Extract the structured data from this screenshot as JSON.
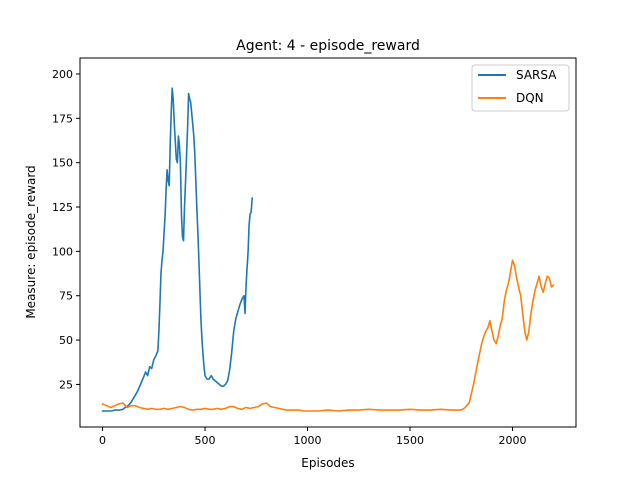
{
  "chart_data": {
    "type": "line",
    "title": "Agent: 4 - episode_reward",
    "xlabel": "Episodes",
    "ylabel": "Measure: episode_reward",
    "xlim": [
      -110,
      2310
    ],
    "ylim": [
      1,
      209
    ],
    "xticks": [
      0,
      500,
      1000,
      1500,
      2000
    ],
    "yticks": [
      25,
      50,
      75,
      100,
      125,
      150,
      175,
      200
    ],
    "grid": false,
    "legend_position": "top-right",
    "series": [
      {
        "name": "SARSA",
        "color": "#1f77b4",
        "points": [
          [
            0,
            10
          ],
          [
            20,
            10
          ],
          [
            40,
            10
          ],
          [
            60,
            10.5
          ],
          [
            80,
            10.5
          ],
          [
            100,
            11
          ],
          [
            110,
            12
          ],
          [
            125,
            13
          ],
          [
            140,
            15
          ],
          [
            155,
            18
          ],
          [
            170,
            21
          ],
          [
            185,
            25
          ],
          [
            200,
            29
          ],
          [
            210,
            32
          ],
          [
            220,
            30
          ],
          [
            230,
            35
          ],
          [
            240,
            34
          ],
          [
            250,
            39
          ],
          [
            260,
            41
          ],
          [
            270,
            44
          ],
          [
            275,
            55
          ],
          [
            280,
            70
          ],
          [
            285,
            88
          ],
          [
            290,
            95
          ],
          [
            295,
            100
          ],
          [
            300,
            110
          ],
          [
            305,
            120
          ],
          [
            310,
            135
          ],
          [
            315,
            146
          ],
          [
            320,
            140
          ],
          [
            325,
            137
          ],
          [
            330,
            160
          ],
          [
            335,
            178
          ],
          [
            340,
            192
          ],
          [
            345,
            185
          ],
          [
            350,
            172
          ],
          [
            355,
            162
          ],
          [
            360,
            152
          ],
          [
            365,
            150
          ],
          [
            370,
            165
          ],
          [
            375,
            160
          ],
          [
            380,
            150
          ],
          [
            385,
            120
          ],
          [
            390,
            108
          ],
          [
            395,
            106
          ],
          [
            400,
            125
          ],
          [
            405,
            140
          ],
          [
            410,
            155
          ],
          [
            415,
            170
          ],
          [
            420,
            189
          ],
          [
            425,
            186
          ],
          [
            430,
            184
          ],
          [
            435,
            178
          ],
          [
            440,
            172
          ],
          [
            445,
            165
          ],
          [
            450,
            155
          ],
          [
            455,
            140
          ],
          [
            460,
            125
          ],
          [
            465,
            110
          ],
          [
            470,
            95
          ],
          [
            475,
            78
          ],
          [
            480,
            62
          ],
          [
            485,
            50
          ],
          [
            490,
            42
          ],
          [
            495,
            35
          ],
          [
            500,
            30
          ],
          [
            510,
            28
          ],
          [
            520,
            28
          ],
          [
            530,
            30
          ],
          [
            540,
            28
          ],
          [
            550,
            27
          ],
          [
            560,
            26
          ],
          [
            570,
            25
          ],
          [
            580,
            24
          ],
          [
            590,
            24
          ],
          [
            600,
            25
          ],
          [
            610,
            27
          ],
          [
            620,
            33
          ],
          [
            630,
            43
          ],
          [
            640,
            55
          ],
          [
            650,
            62
          ],
          [
            660,
            66
          ],
          [
            670,
            70
          ],
          [
            680,
            73
          ],
          [
            690,
            75
          ],
          [
            695,
            65
          ],
          [
            700,
            80
          ],
          [
            705,
            90
          ],
          [
            710,
            100
          ],
          [
            715,
            115
          ],
          [
            720,
            121
          ],
          [
            725,
            122
          ],
          [
            730,
            130
          ]
        ]
      },
      {
        "name": "DQN",
        "color": "#ff7f0e",
        "points": [
          [
            0,
            14
          ],
          [
            20,
            13
          ],
          [
            40,
            12
          ],
          [
            60,
            13
          ],
          [
            80,
            14
          ],
          [
            100,
            14.5
          ],
          [
            120,
            12
          ],
          [
            140,
            13
          ],
          [
            160,
            13
          ],
          [
            180,
            12
          ],
          [
            200,
            11.5
          ],
          [
            220,
            11
          ],
          [
            240,
            11.5
          ],
          [
            260,
            11
          ],
          [
            280,
            11
          ],
          [
            300,
            11.5
          ],
          [
            320,
            11
          ],
          [
            340,
            11.5
          ],
          [
            360,
            12
          ],
          [
            380,
            12.5
          ],
          [
            400,
            12
          ],
          [
            420,
            11
          ],
          [
            440,
            10.5
          ],
          [
            460,
            11
          ],
          [
            480,
            11
          ],
          [
            500,
            11.5
          ],
          [
            520,
            11
          ],
          [
            540,
            11
          ],
          [
            560,
            11.5
          ],
          [
            580,
            11
          ],
          [
            600,
            11.5
          ],
          [
            620,
            12.5
          ],
          [
            640,
            12.5
          ],
          [
            660,
            11.5
          ],
          [
            680,
            11
          ],
          [
            700,
            12
          ],
          [
            720,
            11.5
          ],
          [
            740,
            12
          ],
          [
            760,
            12.5
          ],
          [
            780,
            14
          ],
          [
            800,
            14.5
          ],
          [
            820,
            12.5
          ],
          [
            840,
            12
          ],
          [
            860,
            11.5
          ],
          [
            880,
            11
          ],
          [
            900,
            10.5
          ],
          [
            920,
            10.5
          ],
          [
            940,
            10.5
          ],
          [
            960,
            10.5
          ],
          [
            980,
            10
          ],
          [
            1000,
            10
          ],
          [
            1050,
            10
          ],
          [
            1100,
            10.5
          ],
          [
            1150,
            10
          ],
          [
            1200,
            10.5
          ],
          [
            1250,
            10.5
          ],
          [
            1300,
            11
          ],
          [
            1350,
            10.5
          ],
          [
            1400,
            10.5
          ],
          [
            1450,
            10.5
          ],
          [
            1500,
            11
          ],
          [
            1550,
            10.5
          ],
          [
            1600,
            10.5
          ],
          [
            1650,
            11
          ],
          [
            1700,
            10.5
          ],
          [
            1750,
            10.5
          ],
          [
            1770,
            12
          ],
          [
            1790,
            15
          ],
          [
            1810,
            25
          ],
          [
            1830,
            37
          ],
          [
            1850,
            48
          ],
          [
            1860,
            52
          ],
          [
            1870,
            55
          ],
          [
            1880,
            57
          ],
          [
            1890,
            61
          ],
          [
            1900,
            55
          ],
          [
            1910,
            50
          ],
          [
            1920,
            48
          ],
          [
            1930,
            52
          ],
          [
            1940,
            58
          ],
          [
            1950,
            62
          ],
          [
            1960,
            72
          ],
          [
            1970,
            78
          ],
          [
            1980,
            82
          ],
          [
            1990,
            88
          ],
          [
            2000,
            95
          ],
          [
            2010,
            92
          ],
          [
            2020,
            85
          ],
          [
            2030,
            80
          ],
          [
            2040,
            75
          ],
          [
            2050,
            65
          ],
          [
            2060,
            55
          ],
          [
            2070,
            50
          ],
          [
            2080,
            55
          ],
          [
            2090,
            65
          ],
          [
            2100,
            72
          ],
          [
            2110,
            78
          ],
          [
            2120,
            82
          ],
          [
            2130,
            86
          ],
          [
            2140,
            80
          ],
          [
            2150,
            77
          ],
          [
            2160,
            82
          ],
          [
            2170,
            86
          ],
          [
            2180,
            85
          ],
          [
            2190,
            80
          ],
          [
            2200,
            81
          ]
        ]
      }
    ]
  }
}
